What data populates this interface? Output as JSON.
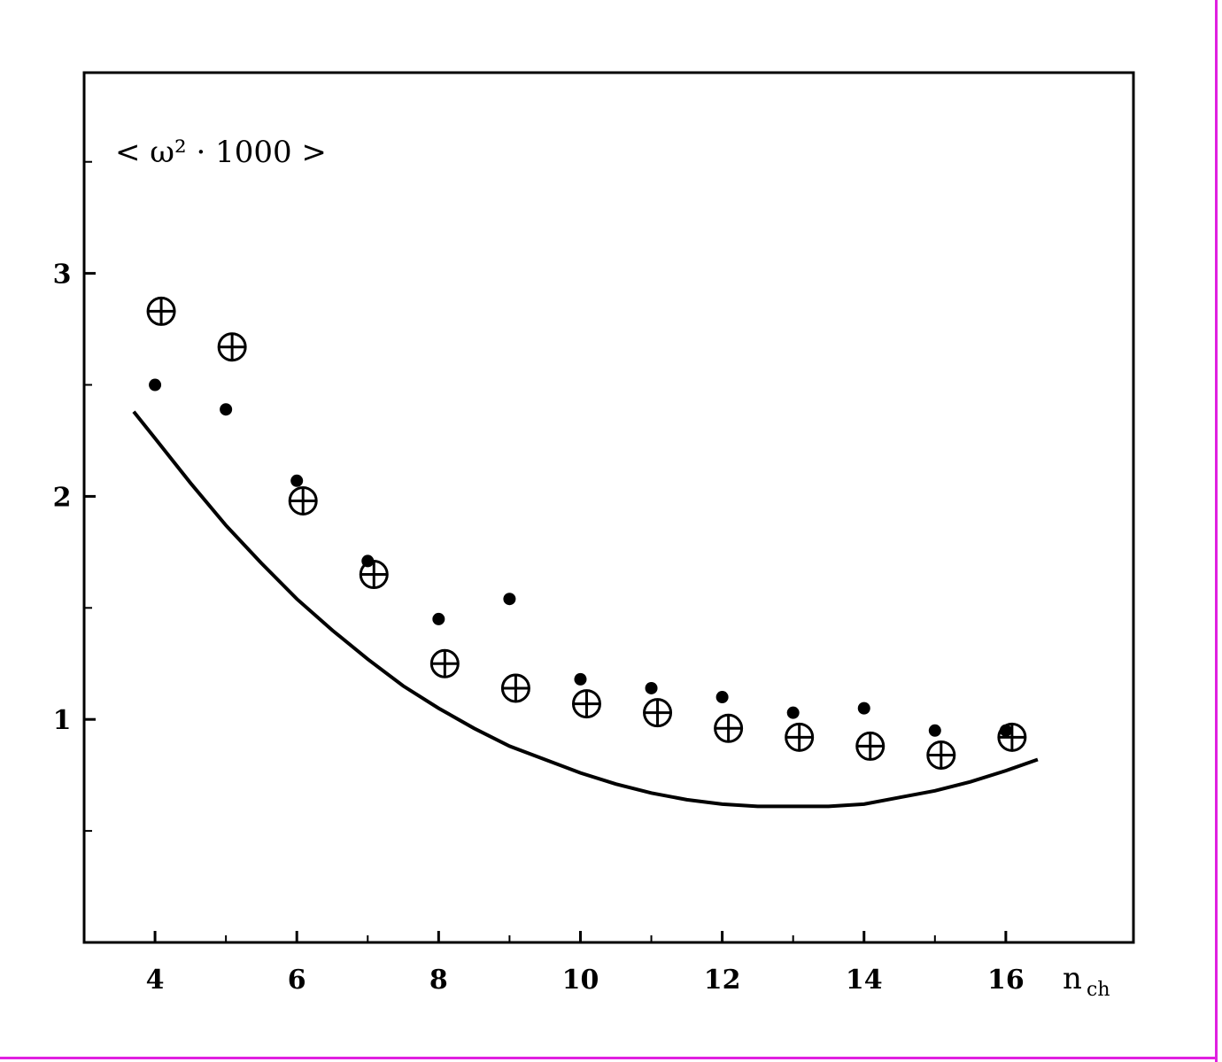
{
  "colors": {
    "frame": "#e020e0",
    "ink": "#000000",
    "background": "#ffffff"
  },
  "chart_data": {
    "type": "scatter",
    "ylabel": "< ω² · 1000 >",
    "xlabel_main": "n",
    "xlabel_sub": "ch",
    "xlim": [
      3.0,
      17.8
    ],
    "ylim": [
      0.0,
      3.9
    ],
    "x_ticks": [
      4,
      6,
      8,
      10,
      12,
      14,
      16
    ],
    "x_tick_labels": [
      "4",
      "6",
      "8",
      "10",
      "12",
      "14",
      "16"
    ],
    "x_minor_ticks": [
      5,
      7,
      9,
      11,
      13,
      15
    ],
    "y_ticks": [
      1,
      2,
      3
    ],
    "y_tick_labels": [
      "1",
      "2",
      "3"
    ],
    "y_minor_ticks": [
      0.5,
      1.5,
      2.5,
      3.5
    ],
    "grid": false,
    "series": [
      {
        "marker": "circle-plus",
        "x": [
          4,
          5,
          6,
          7,
          8,
          9,
          10,
          11,
          12,
          13,
          14,
          15,
          16
        ],
        "y": [
          2.83,
          2.67,
          1.98,
          1.65,
          1.25,
          1.14,
          1.07,
          1.03,
          0.96,
          0.92,
          0.88,
          0.84,
          0.92
        ]
      },
      {
        "marker": "filled-circle",
        "x": [
          4,
          5,
          6,
          7,
          8,
          9,
          10,
          11,
          12,
          13,
          14,
          15,
          16
        ],
        "y": [
          2.5,
          2.39,
          2.07,
          1.71,
          1.45,
          1.54,
          1.18,
          1.14,
          1.1,
          1.03,
          1.05,
          0.95,
          0.95
        ]
      },
      {
        "marker": "line",
        "x": [
          3.7,
          4.0,
          4.5,
          5.0,
          5.5,
          6.0,
          6.5,
          7.0,
          7.5,
          8.0,
          8.5,
          9.0,
          9.5,
          10.0,
          10.5,
          11.0,
          11.5,
          12.0,
          12.5,
          13.0,
          13.5,
          14.0,
          14.5,
          15.0,
          15.5,
          16.0,
          16.45
        ],
        "y": [
          2.38,
          2.26,
          2.06,
          1.87,
          1.7,
          1.54,
          1.4,
          1.27,
          1.15,
          1.05,
          0.96,
          0.88,
          0.82,
          0.76,
          0.71,
          0.67,
          0.64,
          0.62,
          0.61,
          0.61,
          0.61,
          0.62,
          0.65,
          0.68,
          0.72,
          0.77,
          0.82
        ]
      }
    ]
  }
}
